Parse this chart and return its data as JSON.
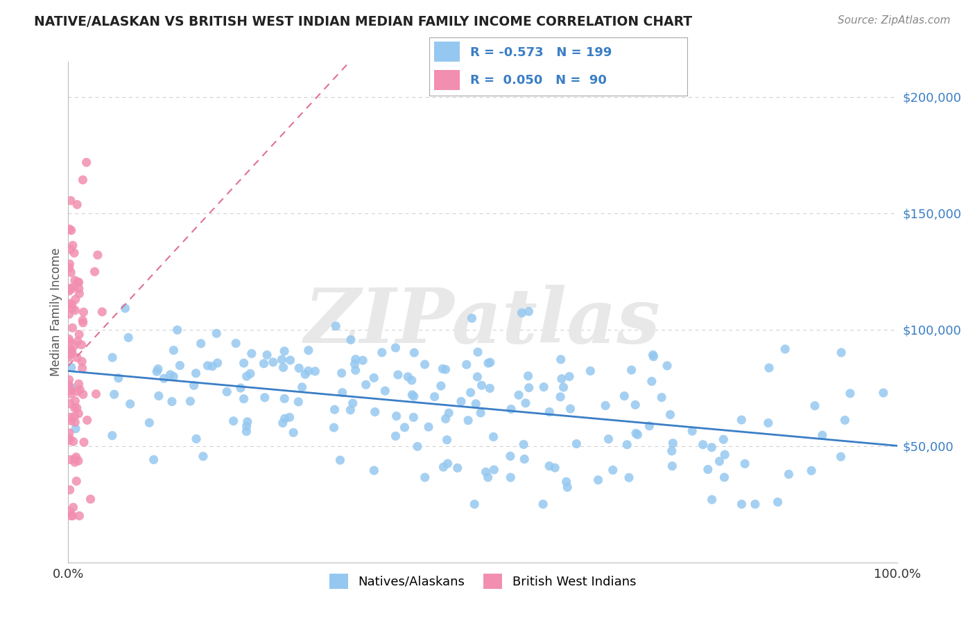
{
  "title": "NATIVE/ALASKAN VS BRITISH WEST INDIAN MEDIAN FAMILY INCOME CORRELATION CHART",
  "source": "Source: ZipAtlas.com",
  "ylabel": "Median Family Income",
  "xlim": [
    0,
    1
  ],
  "ylim": [
    0,
    215000
  ],
  "xtick_labels": [
    "0.0%",
    "100.0%"
  ],
  "ytick_labels": [
    "$50,000",
    "$100,000",
    "$150,000",
    "$200,000"
  ],
  "ytick_values": [
    50000,
    100000,
    150000,
    200000
  ],
  "blue_color": "#95C8F0",
  "pink_color": "#F28FB0",
  "blue_line_color": "#3A7EC6",
  "pink_line_color": "#E07090",
  "grid_color": "#CCCCCC",
  "background_color": "#FFFFFF",
  "title_color": "#222222",
  "source_color": "#888888",
  "axis_label_color": "#555555",
  "legend_text_color": "#3A7EC6",
  "watermark_text": "ZIPatlas",
  "watermark_color": "#E8E8E8",
  "blue_R": -0.573,
  "blue_N": 199,
  "pink_R": 0.05,
  "pink_N": 90,
  "blue_scatter_seed": 42,
  "pink_scatter_seed": 99
}
